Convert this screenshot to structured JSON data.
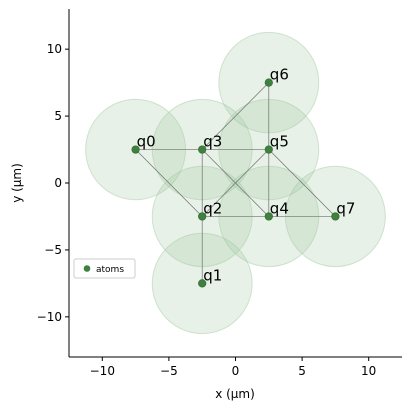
{
  "chart_data": {
    "type": "scatter",
    "xlabel": "x (μm)",
    "ylabel": "y (μm)",
    "xlim": [
      -12.5,
      12.5
    ],
    "ylim": [
      -13,
      13
    ],
    "xticks": [
      -10,
      -5,
      0,
      5,
      10
    ],
    "xtick_labels": [
      "−10",
      "−5",
      "0",
      "5",
      "10"
    ],
    "yticks": [
      -10,
      -5,
      0,
      5,
      10
    ],
    "ytick_labels": [
      "−10",
      "−5",
      "0",
      "5",
      "10"
    ],
    "grid": false,
    "blockade_radius": 3.75,
    "atoms": [
      {
        "label": "q0",
        "x": -7.5,
        "y": 2.5
      },
      {
        "label": "q1",
        "x": -2.5,
        "y": -7.5
      },
      {
        "label": "q2",
        "x": -2.5,
        "y": -2.5
      },
      {
        "label": "q3",
        "x": -2.5,
        "y": 2.5
      },
      {
        "label": "q4",
        "x": 2.5,
        "y": -2.5
      },
      {
        "label": "q5",
        "x": 2.5,
        "y": 2.5
      },
      {
        "label": "q6",
        "x": 2.5,
        "y": 7.5
      },
      {
        "label": "q7",
        "x": 7.5,
        "y": -2.5
      }
    ],
    "edges": [
      [
        "q0",
        "q3"
      ],
      [
        "q0",
        "q2"
      ],
      [
        "q1",
        "q2"
      ],
      [
        "q2",
        "q3"
      ],
      [
        "q2",
        "q4"
      ],
      [
        "q2",
        "q5"
      ],
      [
        "q3",
        "q5"
      ],
      [
        "q3",
        "q4"
      ],
      [
        "q3",
        "q6"
      ],
      [
        "q4",
        "q5"
      ],
      [
        "q4",
        "q7"
      ],
      [
        "q5",
        "q6"
      ],
      [
        "q5",
        "q7"
      ]
    ],
    "legend": {
      "label": "atoms",
      "placement": "center-left"
    },
    "colors": {
      "atom": "#3f7f3f",
      "circle_fill": "#9fc79f",
      "circle_stroke": "#9fc79f",
      "edge": "#707070"
    }
  }
}
